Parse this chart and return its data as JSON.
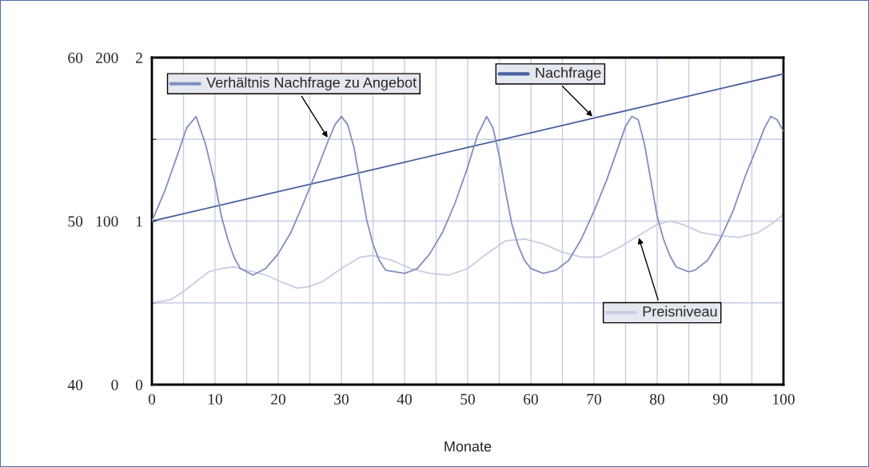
{
  "chart_data": {
    "type": "line",
    "xlabel": "Monate",
    "xlim": [
      0,
      100
    ],
    "xticks": [
      0,
      {
        "value": 5,
        "label": null
      },
      10,
      {
        "value": 15,
        "label": null
      },
      20,
      {
        "value": 25,
        "label": null
      },
      30,
      {
        "value": 35,
        "label": null
      },
      40,
      {
        "value": 45,
        "label": null
      },
      50,
      {
        "value": 55,
        "label": null
      },
      60,
      {
        "value": 65,
        "label": null
      },
      70,
      {
        "value": 75,
        "label": null
      },
      80,
      {
        "value": 85,
        "label": null
      },
      90,
      {
        "value": 95,
        "label": null
      },
      100
    ],
    "ylim": [
      40,
      60
    ],
    "yticks": [
      40,
      {
        "value": 45,
        "label": null
      },
      50,
      {
        "value": 55,
        "label": null
      },
      60
    ],
    "y2lim": [
      0,
      200
    ],
    "y2ticks": [
      0,
      100,
      200
    ],
    "y3lim": [
      0,
      2
    ],
    "y3ticks": [
      0,
      1,
      2
    ],
    "grid": true,
    "legend": "top",
    "marker": "none",
    "line_style": "solid",
    "series": [
      {
        "name": "Verhältnis Nachfrage zu Angebot",
        "color": "#7f8fbf",
        "axis": "y3",
        "x": [
          0,
          2,
          4,
          5.5,
          7,
          8.5,
          10,
          11,
          12,
          13,
          14,
          16,
          18,
          20,
          22,
          24,
          26,
          28,
          29,
          30,
          31,
          32,
          33,
          34,
          35,
          36,
          37,
          40,
          42,
          44,
          46,
          48,
          50,
          51.5,
          53,
          54,
          55,
          56,
          57,
          58,
          59,
          60,
          62,
          64,
          66,
          68,
          70,
          72,
          74,
          75,
          76,
          77,
          78,
          79,
          80,
          81,
          82,
          83,
          85,
          86,
          88,
          90,
          92,
          94,
          96,
          97,
          98,
          99,
          100
        ],
        "values": [
          1.0,
          1.18,
          1.4,
          1.57,
          1.64,
          1.47,
          1.23,
          1.03,
          0.89,
          0.78,
          0.71,
          0.67,
          0.71,
          0.8,
          0.93,
          1.11,
          1.3,
          1.5,
          1.59,
          1.64,
          1.59,
          1.45,
          1.23,
          1.01,
          0.86,
          0.76,
          0.7,
          0.68,
          0.71,
          0.8,
          0.93,
          1.11,
          1.33,
          1.52,
          1.64,
          1.57,
          1.4,
          1.18,
          0.98,
          0.85,
          0.76,
          0.71,
          0.68,
          0.7,
          0.76,
          0.89,
          1.06,
          1.25,
          1.47,
          1.58,
          1.64,
          1.62,
          1.47,
          1.25,
          1.03,
          0.89,
          0.79,
          0.72,
          0.69,
          0.7,
          0.76,
          0.89,
          1.06,
          1.28,
          1.47,
          1.57,
          1.64,
          1.62,
          1.55
        ]
      },
      {
        "name": "Nachfrage",
        "color": "#4a62a0",
        "axis": "y2",
        "x": [
          0,
          10,
          20,
          30,
          40,
          50,
          60,
          70,
          80,
          90,
          100
        ],
        "values": [
          100,
          109,
          118,
          127,
          136,
          145,
          154,
          163,
          172,
          181,
          190
        ]
      },
      {
        "name": "Preisniveau",
        "color": "#c8cce4",
        "axis": "y",
        "x": [
          0,
          3,
          5,
          7,
          9,
          11,
          13,
          15,
          18,
          21,
          23,
          25,
          27,
          30,
          33,
          35,
          38,
          41,
          44,
          47,
          50,
          53,
          56,
          59,
          62,
          65,
          68,
          71,
          74,
          77,
          80,
          82,
          84,
          87,
          90,
          93,
          96,
          98,
          100
        ],
        "values": [
          45.0,
          45.2,
          45.7,
          46.3,
          46.9,
          47.1,
          47.2,
          47.0,
          46.7,
          46.2,
          45.9,
          46.0,
          46.3,
          47.1,
          47.8,
          47.9,
          47.6,
          47.1,
          46.8,
          46.7,
          47.1,
          48.0,
          48.8,
          48.9,
          48.6,
          48.1,
          47.8,
          47.8,
          48.4,
          49.1,
          49.8,
          50.0,
          49.8,
          49.3,
          49.1,
          49.0,
          49.3,
          49.8,
          50.4
        ]
      }
    ]
  }
}
